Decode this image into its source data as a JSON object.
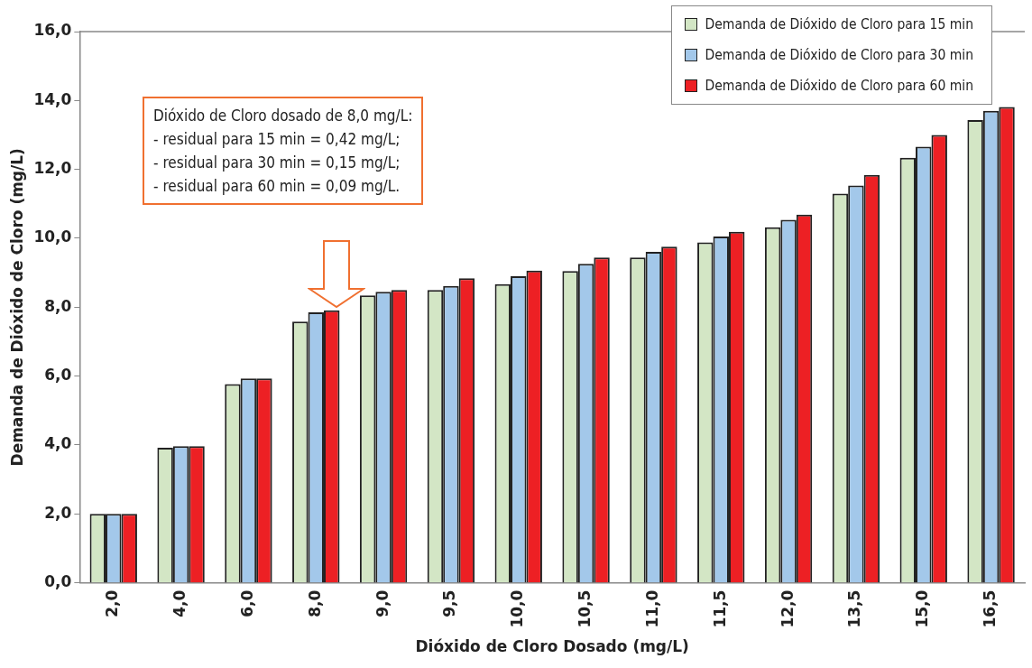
{
  "chart_data": {
    "type": "bar",
    "xlabel": "Dióxido de Cloro Dosado (mg/L)",
    "ylabel": "Demanda de Dióxido de Cloro (mg/L)",
    "categories": [
      "2,0",
      "4,0",
      "6,0",
      "8,0",
      "9,0",
      "9,5",
      "10,0",
      "10,5",
      "11,0",
      "11,5",
      "12,0",
      "13,5",
      "15,0",
      "16,5"
    ],
    "series": [
      {
        "name": "Demanda de Dióxido de Cloro para 15 min",
        "color": "#d3e6c5",
        "values": [
          2.0,
          3.92,
          5.77,
          7.58,
          8.34,
          8.5,
          8.67,
          9.05,
          9.44,
          9.88,
          10.32,
          11.3,
          12.34,
          13.43
        ]
      },
      {
        "name": "Demanda de Dióxido de Cloro para 30 min",
        "color": "#a3c8ea",
        "values": [
          2.0,
          3.97,
          5.93,
          7.85,
          8.45,
          8.62,
          8.9,
          9.26,
          9.61,
          10.05,
          10.54,
          11.53,
          12.66,
          13.7
        ]
      },
      {
        "name": "Demanda de Dióxido de Cloro para 60 min",
        "color": "#ed2024",
        "values": [
          2.0,
          3.97,
          5.93,
          7.91,
          8.5,
          8.84,
          9.06,
          9.44,
          9.76,
          10.19,
          10.69,
          11.84,
          13.0,
          13.81
        ]
      }
    ],
    "ylim": [
      0,
      16
    ],
    "yticks": [
      {
        "value": 0,
        "label": "0,0"
      },
      {
        "value": 2,
        "label": "2,0"
      },
      {
        "value": 4,
        "label": "4,0"
      },
      {
        "value": 6,
        "label": "6,0"
      },
      {
        "value": 8,
        "label": "8,0"
      },
      {
        "value": 10,
        "label": "10,0"
      },
      {
        "value": 12,
        "label": "12,0"
      },
      {
        "value": 14,
        "label": "14,0"
      },
      {
        "value": 16,
        "label": "16,0"
      }
    ],
    "grid": false,
    "legend": "top right",
    "annotations": [
      "Dióxido de Cloro dosado de 8,0 mg/L:",
      "- residual para 15 min = 0,42 mg/L;",
      "- residual para 30 min = 0,15 mg/L;",
      "- residual para 60 min = 0,09 mg/L."
    ]
  }
}
